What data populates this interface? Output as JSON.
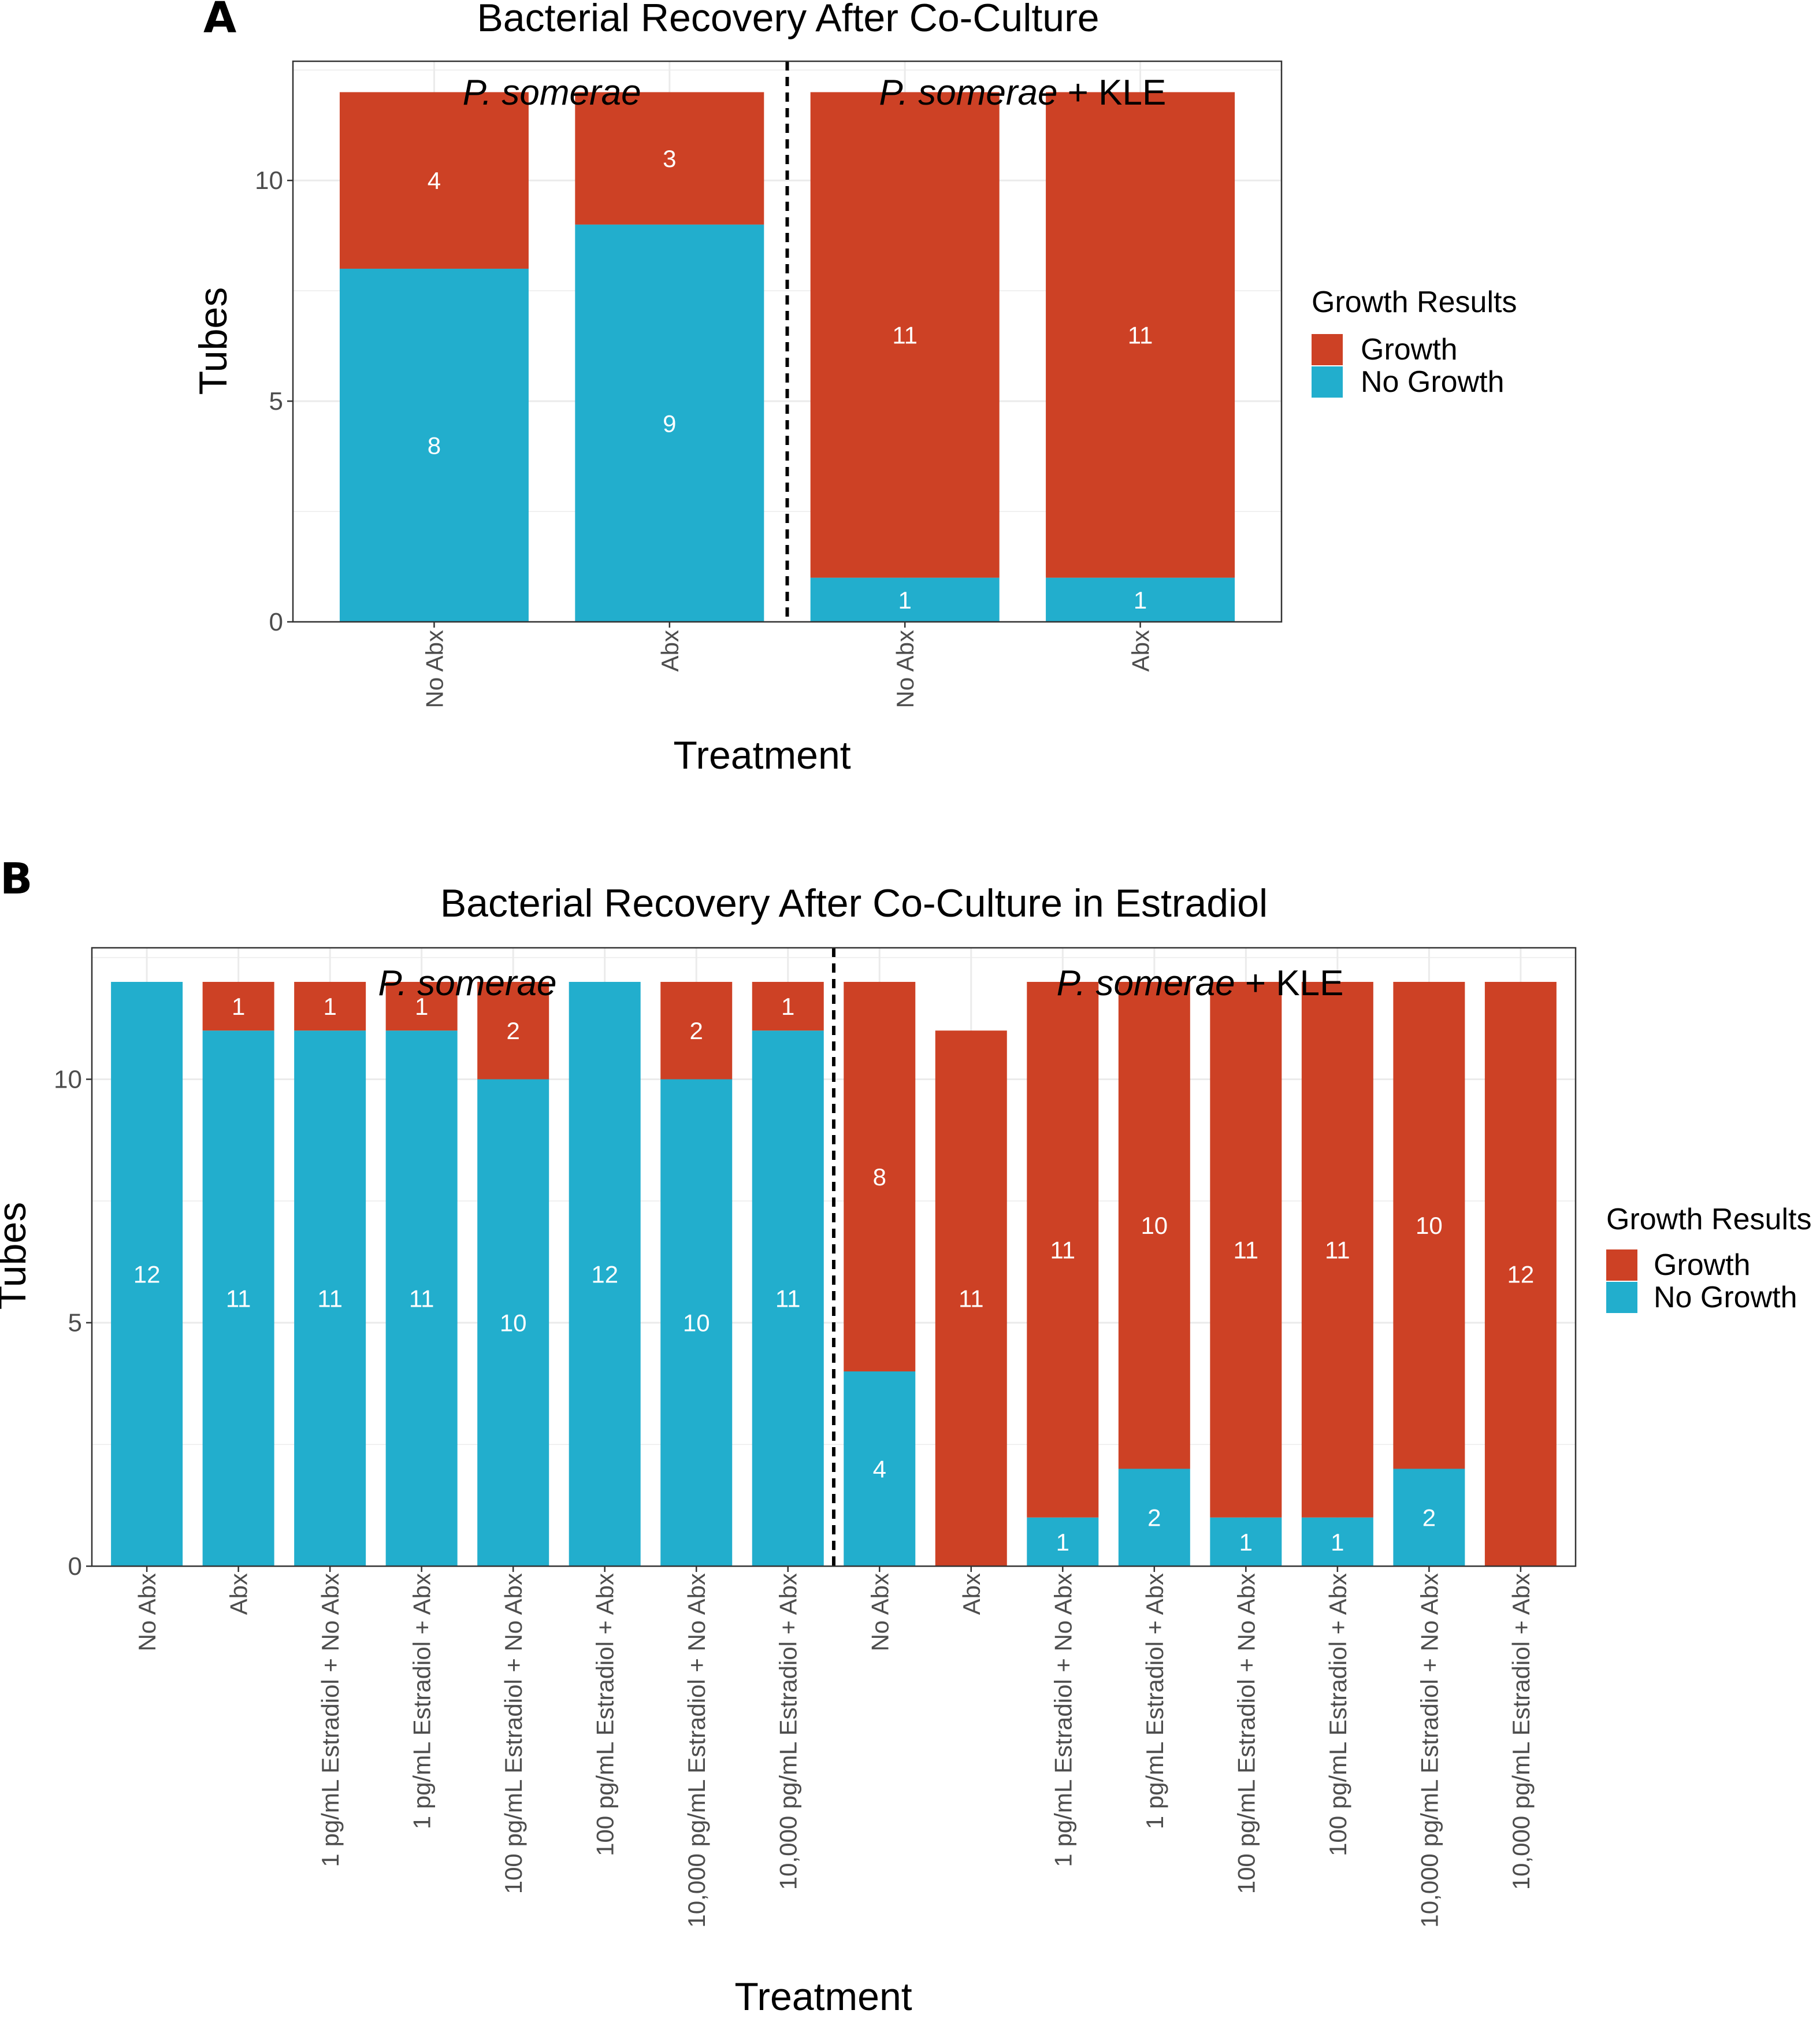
{
  "chart_data": [
    {
      "panel": "A",
      "type": "bar",
      "stacked": true,
      "title": "Bacterial Recovery After Co-Culture",
      "xlabel": "Treatment",
      "ylabel": "Tubes",
      "ylim": [
        0,
        12.7
      ],
      "yticks": [
        0,
        5,
        10
      ],
      "groups": [
        {
          "species": "P. somerae",
          "suffix": "",
          "categories": [
            "No Abx",
            "Abx"
          ]
        },
        {
          "species": "P. somerae",
          "suffix": " + KLE",
          "categories": [
            "No Abx",
            "Abx"
          ]
        }
      ],
      "series": [
        {
          "name": "No Growth",
          "color": "#22aecd",
          "values": [
            8,
            9,
            1,
            1
          ]
        },
        {
          "name": "Growth",
          "color": "#cd4125",
          "values": [
            4,
            3,
            11,
            11
          ]
        }
      ],
      "legend": {
        "title": "Growth Results",
        "items": [
          "Growth",
          "No Growth"
        ],
        "position": "right"
      }
    },
    {
      "panel": "B",
      "type": "bar",
      "stacked": true,
      "title": "Bacterial Recovery After Co-Culture in Estradiol",
      "xlabel": "Treatment",
      "ylabel": "Tubes",
      "ylim": [
        0,
        12.7
      ],
      "yticks": [
        0,
        5,
        10
      ],
      "groups": [
        {
          "species": "P. somerae",
          "suffix": "",
          "categories": [
            "No Abx",
            "Abx",
            "1 pg/mL Estradiol + No Abx",
            "1 pg/mL Estradiol + Abx",
            "100 pg/mL Estradiol + No Abx",
            "100 pg/mL Estradiol + Abx",
            "10,000 pg/mL Estradiol + No Abx",
            "10,000 pg/mL Estradiol + Abx"
          ]
        },
        {
          "species": "P. somerae",
          "suffix": " + KLE",
          "categories": [
            "No Abx",
            "Abx",
            "1 pg/mL Estradiol + No Abx",
            "1 pg/mL Estradiol + Abx",
            "100 pg/mL Estradiol + No Abx",
            "100 pg/mL Estradiol + Abx",
            "10,000 pg/mL Estradiol + No Abx",
            "10,000 pg/mL Estradiol + Abx"
          ]
        }
      ],
      "series": [
        {
          "name": "No Growth",
          "color": "#22aecd",
          "values": [
            12,
            11,
            11,
            11,
            10,
            12,
            10,
            11,
            4,
            0,
            1,
            2,
            1,
            1,
            2,
            0
          ]
        },
        {
          "name": "Growth",
          "color": "#cd4125",
          "values": [
            0,
            1,
            1,
            1,
            2,
            0,
            2,
            1,
            8,
            11,
            11,
            10,
            11,
            11,
            10,
            12
          ]
        }
      ],
      "legend": {
        "title": "Growth Results",
        "items": [
          "Growth",
          "No Growth"
        ],
        "position": "right"
      }
    }
  ]
}
